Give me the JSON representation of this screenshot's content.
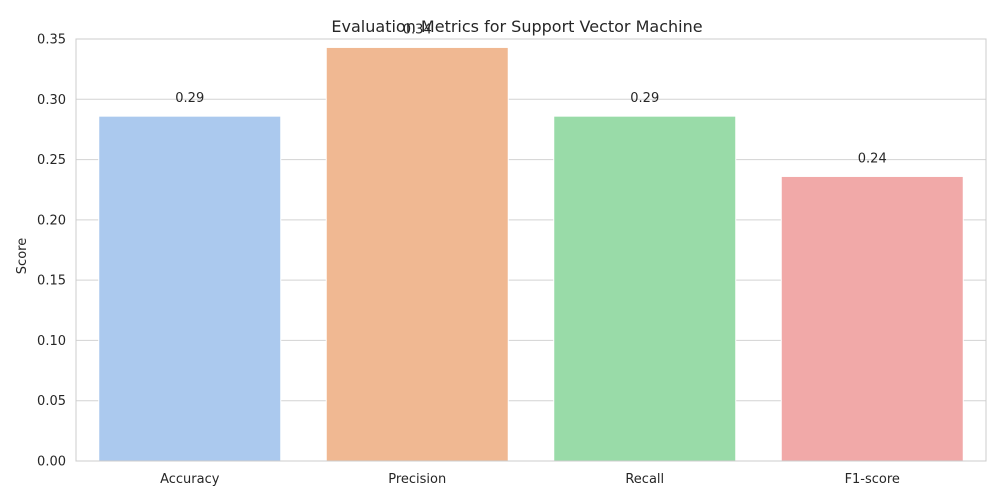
{
  "chart_data": {
    "type": "bar",
    "title": "Evaluation Metrics for Support Vector Machine",
    "xlabel": "",
    "ylabel": "Score",
    "categories": [
      "Accuracy",
      "Precision",
      "Recall",
      "F1-score"
    ],
    "values": [
      0.286,
      0.343,
      0.286,
      0.236
    ],
    "value_labels": [
      "0.29",
      "0.34",
      "0.29",
      "0.24"
    ],
    "ylim": [
      0,
      0.35
    ],
    "yticks": [
      0.0,
      0.05,
      0.1,
      0.15,
      0.2,
      0.25,
      0.3,
      0.35
    ],
    "ytick_labels": [
      "0.00",
      "0.05",
      "0.10",
      "0.15",
      "0.20",
      "0.25",
      "0.30",
      "0.35"
    ],
    "colors": [
      "#abc9ee",
      "#f0b892",
      "#99dba8",
      "#f1a9a8"
    ],
    "grid": "horizontal",
    "frame_color": "#cccccc",
    "grid_color": "#d3d3d3",
    "legend": "none"
  }
}
